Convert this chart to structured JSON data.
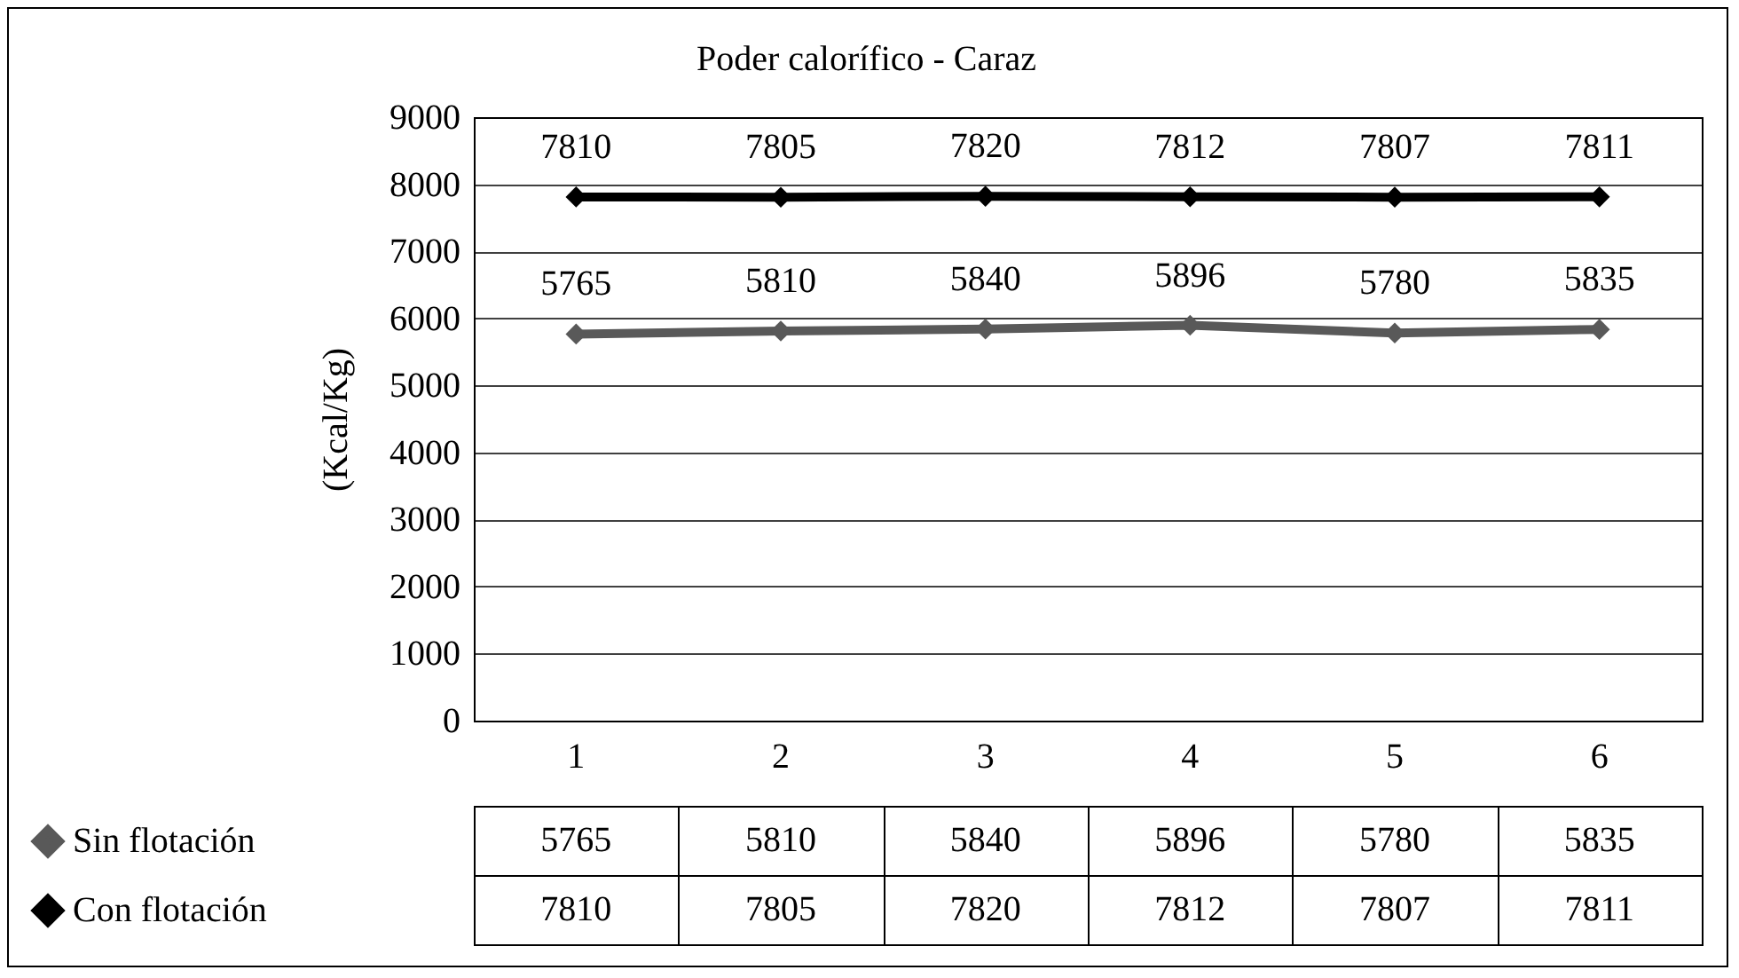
{
  "chart_data": {
    "type": "line",
    "title": "Poder calorífico - Caraz",
    "ylabel": "(Kcal/Kg)",
    "categories": [
      "1",
      "2",
      "3",
      "4",
      "5",
      "6"
    ],
    "series": [
      {
        "name": "Sin flotación",
        "color": "#595959",
        "values": [
          5765,
          5810,
          5840,
          5896,
          5780,
          5835
        ],
        "value_labels": [
          "5765",
          "5810",
          "5840",
          "5896",
          "5780",
          "5835"
        ]
      },
      {
        "name": "Con flotación",
        "color": "#000000",
        "values": [
          7810,
          7805,
          7820,
          7812,
          7807,
          7811
        ],
        "value_labels": [
          "7810",
          "7805",
          "7820",
          "7812",
          "7807",
          "7811"
        ]
      }
    ],
    "ylim": [
      0,
      9000
    ],
    "yticks": [
      0,
      1000,
      2000,
      3000,
      4000,
      5000,
      6000,
      7000,
      8000,
      9000
    ],
    "grid": "y",
    "legend": "bottom left",
    "marker": "diamond",
    "line_style": "solid"
  }
}
